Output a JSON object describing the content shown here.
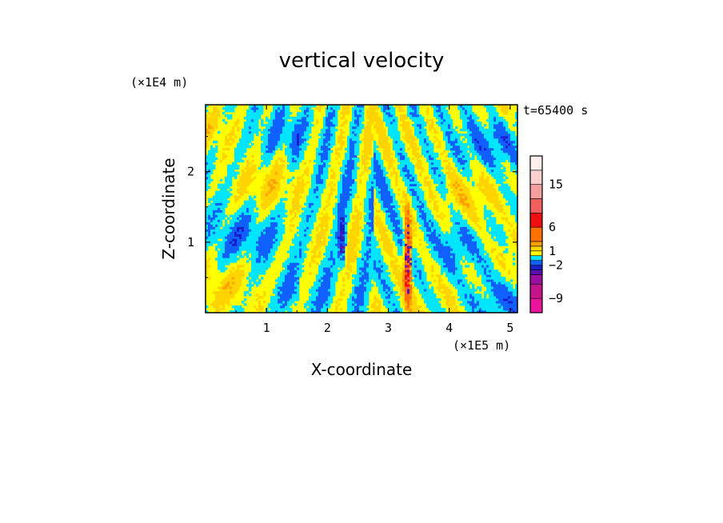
{
  "chart_data": {
    "type": "heatmap",
    "title": "vertical velocity",
    "xlabel": "X-coordinate",
    "ylabel": "Z-coordinate",
    "x_scale_label": "(×1E5 m)",
    "y_scale_label": "(×1E4 m)",
    "time_label": "t=65400 s",
    "xlim": [
      0,
      5.12
    ],
    "ylim": [
      0,
      2.95
    ],
    "x_ticks": [
      1,
      2,
      3,
      4,
      5
    ],
    "y_ticks": [
      1,
      2
    ],
    "colorbar": {
      "levels": [
        {
          "lo": -12,
          "hi": -9,
          "color": "#e8149a"
        },
        {
          "lo": -9,
          "hi": -6,
          "color": "#c4148c"
        },
        {
          "lo": -6,
          "hi": -4,
          "color": "#9a0fa0"
        },
        {
          "lo": -4,
          "hi": -3,
          "color": "#5a10b0"
        },
        {
          "lo": -3,
          "hi": -2,
          "color": "#1a20c8"
        },
        {
          "lo": -2,
          "hi": -1,
          "color": "#1060ff"
        },
        {
          "lo": -1,
          "hi": 0,
          "color": "#00e5ff"
        },
        {
          "lo": 0,
          "hi": 1,
          "color": "#ffff00"
        },
        {
          "lo": 1,
          "hi": 2,
          "color": "#ffd400"
        },
        {
          "lo": 2,
          "hi": 3,
          "color": "#ffa000"
        },
        {
          "lo": 3,
          "hi": 6,
          "color": "#ff7000"
        },
        {
          "lo": 6,
          "hi": 9,
          "color": "#ee1010"
        },
        {
          "lo": 9,
          "hi": 12,
          "color": "#f06060"
        },
        {
          "lo": 12,
          "hi": 15,
          "color": "#f4a0a0"
        },
        {
          "lo": 15,
          "hi": 18,
          "color": "#f8d0d0"
        },
        {
          "lo": 18,
          "hi": 21,
          "color": "#fff0f0"
        }
      ],
      "tick_labels": [
        {
          "value": 15,
          "label": "15"
        },
        {
          "value": 6,
          "label": "6"
        },
        {
          "value": 1,
          "label": "1"
        },
        {
          "value": -2,
          "label": "−2"
        },
        {
          "value": -9,
          "label": "−9"
        }
      ]
    },
    "field_description_values": {
      "positive_color": "#ffff00",
      "negative_color": "#00e5ff",
      "strong_updraft_x": 3.32,
      "strong_downdraft_x": 2.25
    }
  }
}
